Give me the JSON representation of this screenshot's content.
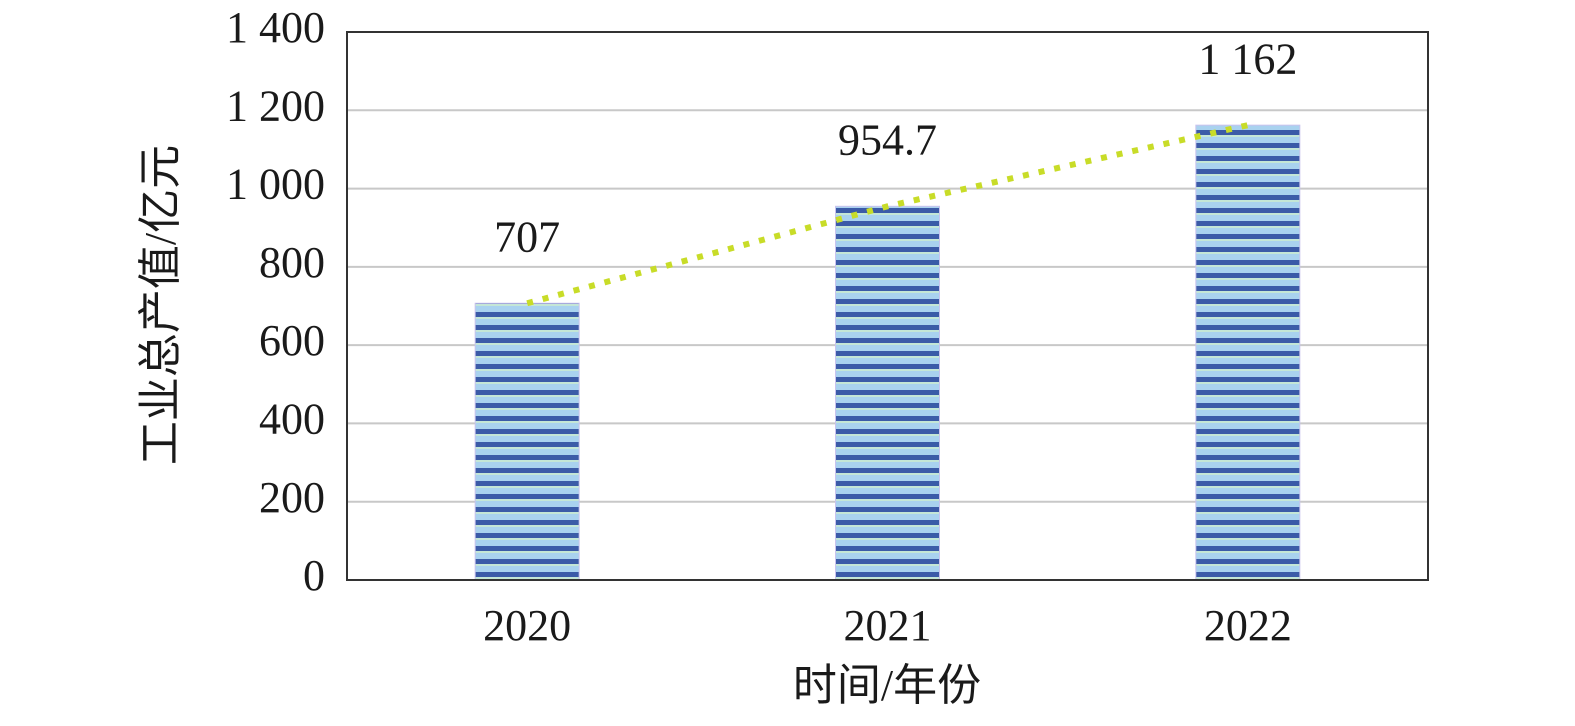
{
  "chart_data": {
    "type": "bar",
    "x_label": "时间/年份",
    "y_label": "工业总产值/亿元",
    "categories": [
      "2020",
      "2021",
      "2022"
    ],
    "values": [
      707,
      954.7,
      1162
    ],
    "value_labels": [
      "707",
      "954.7",
      "1 162"
    ],
    "color": "#3b5ba8",
    "trendline": true,
    "trendline_color": "#c8dc28",
    "ylim": [
      0,
      1400
    ],
    "yticks": [
      0,
      200,
      400,
      600,
      800,
      {
        "value": 1000,
        "label": "1 000"
      },
      {
        "value": 1200,
        "label": "1 200"
      },
      {
        "value": 1400,
        "label": "1 400"
      }
    ],
    "grid": true
  }
}
